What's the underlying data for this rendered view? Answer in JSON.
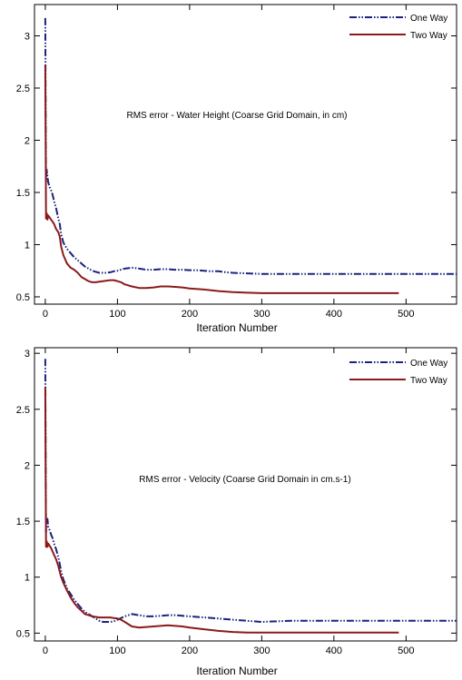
{
  "chart_data": [
    {
      "type": "line",
      "annotation": "RMS error - Water Height (Coarse Grid Domain, in cm)",
      "xlabel": "Iteration Number",
      "ylabel": "",
      "xlim": [
        -15,
        570
      ],
      "ylim": [
        0.43,
        3.3
      ],
      "xticks": [
        0,
        100,
        200,
        300,
        400,
        500
      ],
      "yticks": [
        0.5,
        1,
        1.5,
        2,
        2.5,
        3
      ],
      "ytick_labels": [
        "0.5",
        "1",
        "1.5",
        "2",
        "2.5",
        "3"
      ],
      "legend": "top-right",
      "grid": false,
      "series": [
        {
          "name": "One Way",
          "color": "#1a237e",
          "style": "dash-dot-dot",
          "x": [
            0,
            0.5,
            1,
            2,
            3,
            4,
            6,
            8,
            10,
            12,
            15,
            18,
            20,
            22,
            25,
            30,
            35,
            40,
            45,
            50,
            55,
            60,
            65,
            70,
            75,
            80,
            85,
            90,
            95,
            100,
            110,
            120,
            130,
            140,
            150,
            160,
            170,
            180,
            190,
            200,
            210,
            220,
            230,
            240,
            250,
            260,
            280,
            300,
            320,
            340,
            360,
            380,
            400,
            420,
            440,
            460,
            480,
            500,
            520,
            540,
            560,
            570
          ],
          "y": [
            3.17,
            2.3,
            1.6,
            1.72,
            1.65,
            1.6,
            1.55,
            1.52,
            1.48,
            1.42,
            1.35,
            1.25,
            1.2,
            1.1,
            1.02,
            0.96,
            0.92,
            0.88,
            0.85,
            0.82,
            0.79,
            0.77,
            0.75,
            0.74,
            0.73,
            0.73,
            0.73,
            0.735,
            0.745,
            0.75,
            0.77,
            0.78,
            0.77,
            0.76,
            0.76,
            0.765,
            0.765,
            0.76,
            0.76,
            0.755,
            0.755,
            0.75,
            0.745,
            0.745,
            0.735,
            0.73,
            0.725,
            0.72,
            0.72,
            0.72,
            0.72,
            0.72,
            0.72,
            0.72,
            0.72,
            0.72,
            0.72,
            0.72,
            0.72,
            0.72,
            0.72,
            0.72
          ]
        },
        {
          "name": "Two Way",
          "color": "#8b1a1a",
          "style": "solid",
          "x": [
            0,
            0.5,
            1,
            2,
            3,
            4,
            6,
            8,
            10,
            12,
            15,
            18,
            20,
            22,
            25,
            30,
            35,
            40,
            45,
            50,
            55,
            60,
            65,
            70,
            75,
            80,
            85,
            90,
            95,
            100,
            105,
            110,
            120,
            130,
            140,
            150,
            160,
            170,
            180,
            190,
            200,
            220,
            240,
            260,
            280,
            300,
            350,
            400,
            450,
            490
          ],
          "y": [
            2.72,
            2.0,
            1.25,
            1.3,
            1.24,
            1.28,
            1.26,
            1.24,
            1.22,
            1.2,
            1.15,
            1.12,
            1.08,
            0.98,
            0.9,
            0.82,
            0.78,
            0.76,
            0.73,
            0.69,
            0.67,
            0.65,
            0.64,
            0.64,
            0.645,
            0.65,
            0.655,
            0.66,
            0.66,
            0.65,
            0.64,
            0.62,
            0.6,
            0.585,
            0.585,
            0.59,
            0.6,
            0.6,
            0.595,
            0.59,
            0.58,
            0.57,
            0.555,
            0.545,
            0.54,
            0.535,
            0.535,
            0.535,
            0.535,
            0.535
          ]
        }
      ]
    },
    {
      "type": "line",
      "annotation": "RMS error - Velocity (Coarse Grid Domain in cm.s-1)",
      "xlabel": "Iteration Number",
      "ylabel": "",
      "xlim": [
        -15,
        570
      ],
      "ylim": [
        0.43,
        3.05
      ],
      "xticks": [
        0,
        100,
        200,
        300,
        400,
        500
      ],
      "yticks": [
        0.5,
        1,
        1.5,
        2,
        2.5,
        3
      ],
      "ytick_labels": [
        "0.5",
        "1",
        "1.5",
        "2",
        "2.5",
        "3"
      ],
      "legend": "top-right",
      "grid": false,
      "series": [
        {
          "name": "One Way",
          "color": "#1a237e",
          "style": "dash-dot-dot",
          "x": [
            0,
            0.5,
            1,
            2,
            3,
            4,
            6,
            8,
            10,
            12,
            15,
            18,
            20,
            22,
            25,
            30,
            35,
            40,
            45,
            50,
            55,
            60,
            65,
            70,
            75,
            80,
            85,
            90,
            95,
            100,
            110,
            120,
            130,
            140,
            150,
            160,
            170,
            180,
            190,
            200,
            220,
            240,
            260,
            280,
            300,
            320,
            340,
            360,
            400,
            450,
            500,
            540,
            570
          ],
          "y": [
            2.95,
            2.1,
            1.4,
            1.5,
            1.52,
            1.45,
            1.42,
            1.38,
            1.35,
            1.3,
            1.25,
            1.18,
            1.12,
            1.05,
            0.98,
            0.9,
            0.85,
            0.8,
            0.76,
            0.72,
            0.69,
            0.67,
            0.65,
            0.63,
            0.61,
            0.6,
            0.6,
            0.6,
            0.605,
            0.62,
            0.65,
            0.67,
            0.66,
            0.65,
            0.65,
            0.655,
            0.66,
            0.66,
            0.655,
            0.65,
            0.64,
            0.63,
            0.62,
            0.61,
            0.6,
            0.605,
            0.61,
            0.61,
            0.61,
            0.61,
            0.61,
            0.61,
            0.61
          ]
        },
        {
          "name": "Two Way",
          "color": "#8b1a1a",
          "style": "solid",
          "x": [
            0,
            0.5,
            1,
            2,
            3,
            4,
            6,
            8,
            10,
            12,
            15,
            18,
            20,
            22,
            25,
            30,
            35,
            40,
            45,
            50,
            55,
            60,
            65,
            70,
            75,
            80,
            85,
            90,
            95,
            100,
            105,
            110,
            120,
            130,
            140,
            150,
            160,
            170,
            180,
            190,
            200,
            220,
            240,
            260,
            280,
            300,
            350,
            400,
            450,
            490
          ],
          "y": [
            2.7,
            1.9,
            1.27,
            1.32,
            1.27,
            1.3,
            1.28,
            1.26,
            1.23,
            1.2,
            1.16,
            1.1,
            1.05,
            1.0,
            0.95,
            0.88,
            0.82,
            0.77,
            0.73,
            0.7,
            0.67,
            0.66,
            0.65,
            0.645,
            0.64,
            0.64,
            0.64,
            0.64,
            0.635,
            0.63,
            0.62,
            0.6,
            0.56,
            0.55,
            0.555,
            0.56,
            0.565,
            0.57,
            0.565,
            0.56,
            0.55,
            0.535,
            0.52,
            0.51,
            0.505,
            0.505,
            0.505,
            0.505,
            0.505,
            0.505
          ]
        }
      ]
    }
  ]
}
